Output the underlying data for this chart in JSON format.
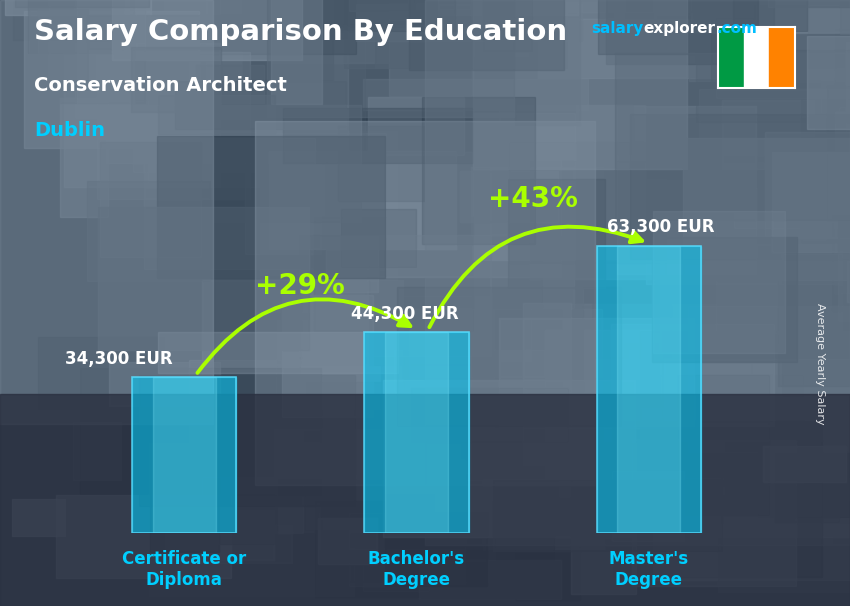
{
  "title": "Salary Comparison By Education",
  "subtitle": "Conservation Architect",
  "city": "Dublin",
  "categories": [
    "Certificate or\nDiploma",
    "Bachelor's\nDegree",
    "Master's\nDegree"
  ],
  "values": [
    34300,
    44300,
    63300
  ],
  "value_labels": [
    "34,300 EUR",
    "44,300 EUR",
    "63,300 EUR"
  ],
  "pct_labels": [
    "+29%",
    "+43%"
  ],
  "bar_color": "#00CFFF",
  "bar_alpha": 0.55,
  "bg_color": "#3a4a5a",
  "title_color": "#ffffff",
  "subtitle_color": "#ffffff",
  "city_color": "#00CFFF",
  "label_color": "#ffffff",
  "xtick_color": "#00CFFF",
  "pct_color": "#aaff00",
  "arrow_color": "#aaff00",
  "website_color_salary": "#00BFFF",
  "website_color_rest": "#ffffff",
  "flag_green": "#009A44",
  "flag_white": "#ffffff",
  "flag_orange": "#FF8200",
  "ylabel": "Average Yearly Salary",
  "ylim": [
    0,
    80000
  ],
  "bar_width": 0.45
}
